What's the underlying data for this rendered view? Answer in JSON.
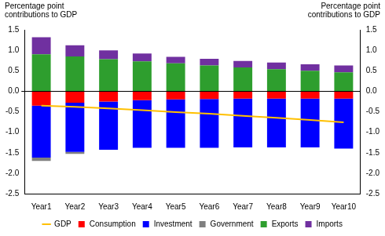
{
  "chart_data": {
    "type": "bar",
    "stacked": true,
    "ylabel": "Percentage point contributions to GDP",
    "y2label": "Percentage point contributions to GDP",
    "categories": [
      "Year1",
      "Year2",
      "Year3",
      "Year4",
      "Year5",
      "Year6",
      "Year7",
      "Year8",
      "Year9",
      "Year10"
    ],
    "series": [
      {
        "name": "Consumption",
        "color": "#ff0000",
        "values": [
          -0.35,
          -0.28,
          -0.25,
          -0.22,
          -0.2,
          -0.19,
          -0.18,
          -0.18,
          -0.18,
          -0.18
        ]
      },
      {
        "name": "Investment",
        "color": "#0000ff",
        "values": [
          -1.27,
          -1.2,
          -1.18,
          -1.16,
          -1.18,
          -1.19,
          -1.19,
          -1.19,
          -1.19,
          -1.22
        ]
      },
      {
        "name": "Government",
        "color": "#808080",
        "values": [
          -0.08,
          -0.05,
          0,
          0,
          0,
          0,
          0,
          0,
          0,
          0
        ]
      },
      {
        "name": "Exports",
        "color": "#2e9e2e",
        "values": [
          0.9,
          0.85,
          0.78,
          0.73,
          0.68,
          0.63,
          0.58,
          0.54,
          0.5,
          0.46
        ]
      },
      {
        "name": "Imports",
        "color": "#7030a0",
        "values": [
          0.42,
          0.27,
          0.22,
          0.19,
          0.16,
          0.16,
          0.16,
          0.16,
          0.16,
          0.17
        ]
      },
      {
        "name": "GDP",
        "type": "line",
        "color": "#ffc000",
        "values": [
          -0.35,
          -0.38,
          -0.42,
          -0.46,
          -0.51,
          -0.55,
          -0.6,
          -0.65,
          -0.7,
          -0.76
        ]
      }
    ],
    "ylim": [
      -2.5,
      1.5
    ],
    "yticks": [
      -2.5,
      {
        "value": -2,
        "label": "-2.0"
      },
      -1.5,
      {
        "value": -1,
        "label": "-1.0"
      },
      -0.5,
      {
        "value": 0,
        "label": "0.0"
      },
      0.5,
      {
        "value": 1,
        "label": "1.0"
      },
      1.5
    ],
    "y2lim": [
      -2.5,
      1.5
    ],
    "y2ticks": [
      -2.5,
      {
        "value": -2,
        "label": "-2.0"
      },
      -1.5,
      {
        "value": -1,
        "label": "-1.0"
      },
      -0.5,
      {
        "value": 0,
        "label": "0.0"
      },
      0.5,
      {
        "value": 1,
        "label": "1.0"
      },
      1.5
    ],
    "grid": false,
    "legend": "bottom"
  }
}
